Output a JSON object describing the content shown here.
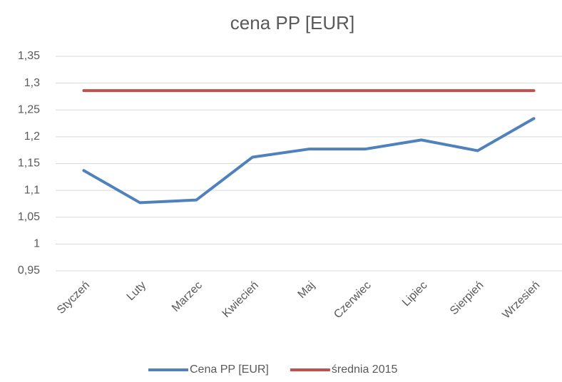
{
  "chart_data": {
    "type": "line",
    "title": "cena PP [EUR]",
    "categories": [
      "Styczeń",
      "Luty",
      "Marzec",
      "Kwiecień",
      "Maj",
      "Czerwiec",
      "Lipiec",
      "Sierpień",
      "Wrzesień"
    ],
    "series": [
      {
        "name": "Cena PP [EUR]",
        "color": "#4f81bd",
        "values": [
          1.137,
          1.077,
          1.082,
          1.162,
          1.177,
          1.177,
          1.194,
          1.174,
          1.234
        ]
      },
      {
        "name": "średnia 2015",
        "color": "#c0504d",
        "values": [
          1.286,
          1.286,
          1.286,
          1.286,
          1.286,
          1.286,
          1.286,
          1.286,
          1.286
        ]
      }
    ],
    "ylim": [
      0.95,
      1.35
    ],
    "yticks": [
      {
        "value": 0.95,
        "label": "0,95"
      },
      1,
      {
        "value": 1.05,
        "label": "1,05"
      },
      {
        "value": 1.1,
        "label": "1,1"
      },
      {
        "value": 1.15,
        "label": "1,15"
      },
      {
        "value": 1.2,
        "label": "1,2"
      },
      {
        "value": 1.25,
        "label": "1,25"
      },
      {
        "value": 1.3,
        "label": "1,3"
      },
      {
        "value": 1.35,
        "label": "1,35"
      }
    ],
    "grid": true,
    "legend": "bottom"
  }
}
